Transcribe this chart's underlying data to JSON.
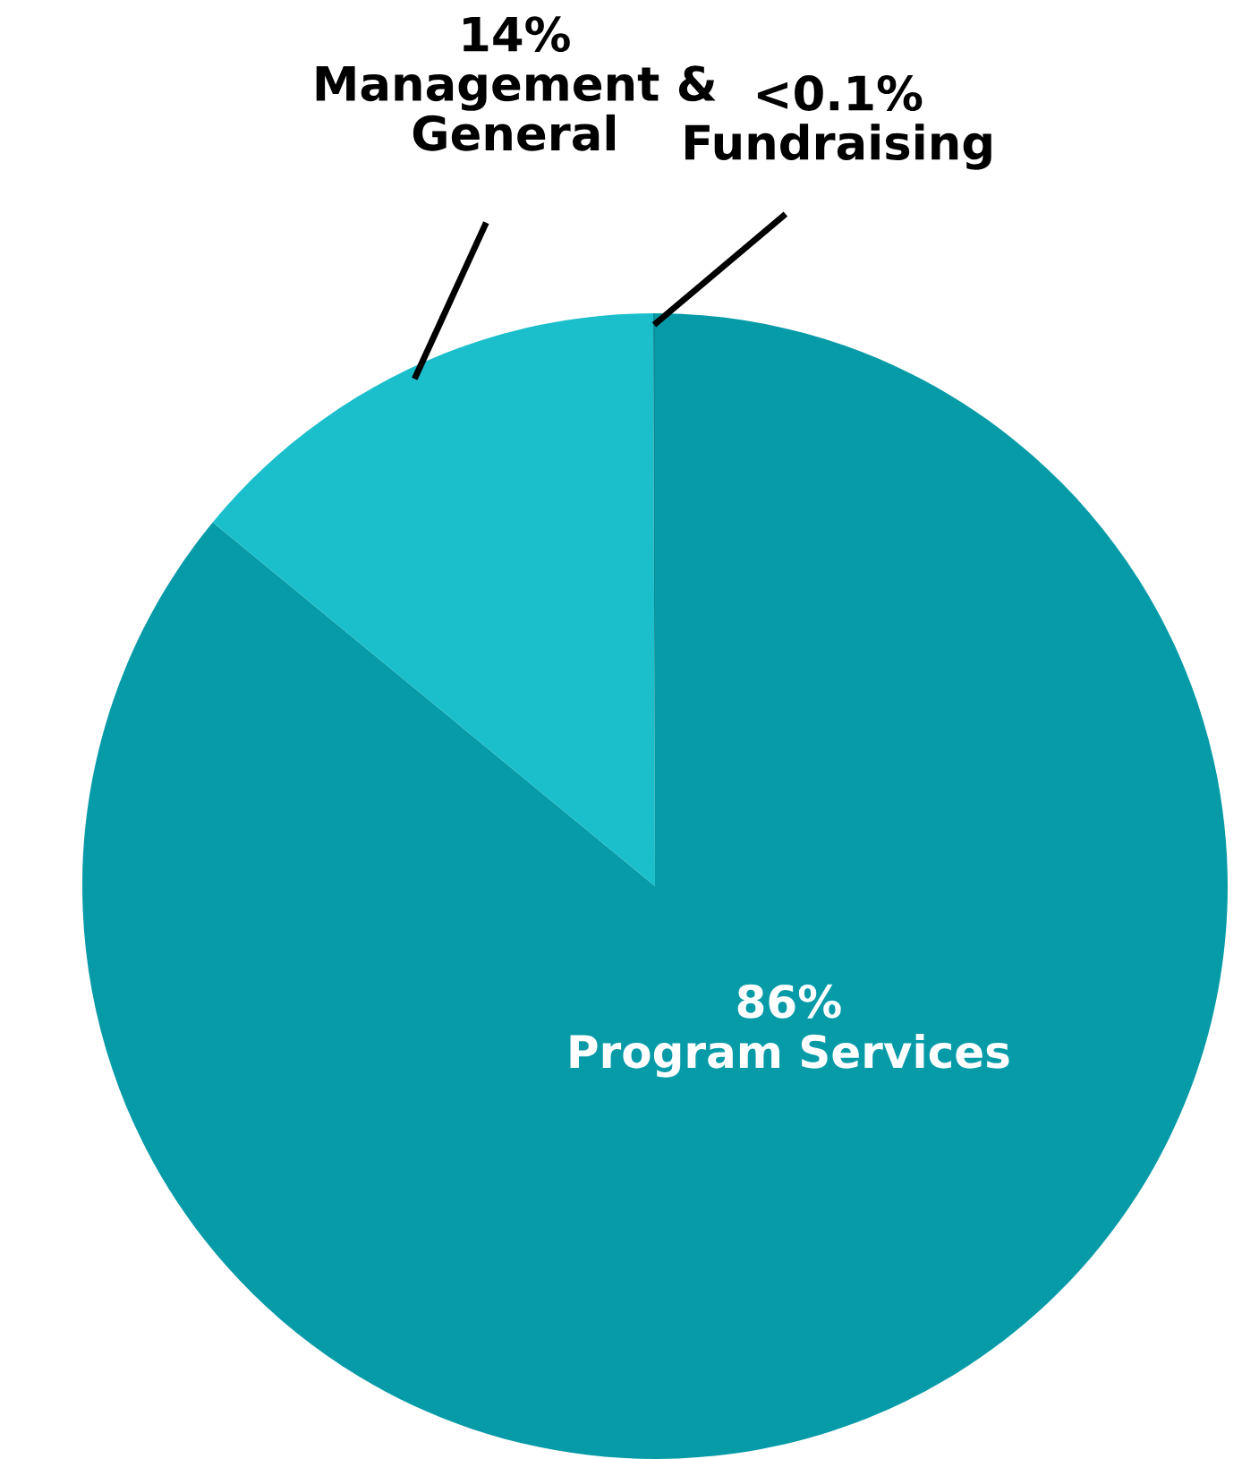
{
  "chart_data": {
    "type": "pie",
    "categories": [
      "Program Services",
      "Management &\nGeneral",
      "Fundraising"
    ],
    "values": [
      86,
      14,
      0.05
    ],
    "value_labels": [
      "86%",
      "14%",
      "<0.1%"
    ],
    "colors": [
      "#079ba8",
      "#1bbfcc",
      "#0b8c98"
    ]
  }
}
